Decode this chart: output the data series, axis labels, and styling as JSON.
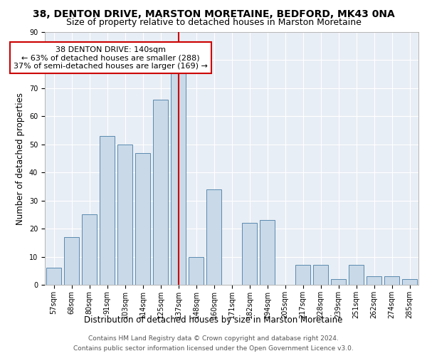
{
  "title1": "38, DENTON DRIVE, MARSTON MORETAINE, BEDFORD, MK43 0NA",
  "title2": "Size of property relative to detached houses in Marston Moretaine",
  "xlabel": "Distribution of detached houses by size in Marston Moretaine",
  "ylabel": "Number of detached properties",
  "footer1": "Contains HM Land Registry data © Crown copyright and database right 2024.",
  "footer2": "Contains public sector information licensed under the Open Government Licence v3.0.",
  "categories": [
    "57sqm",
    "68sqm",
    "80sqm",
    "91sqm",
    "103sqm",
    "114sqm",
    "125sqm",
    "137sqm",
    "148sqm",
    "160sqm",
    "171sqm",
    "182sqm",
    "194sqm",
    "205sqm",
    "217sqm",
    "228sqm",
    "239sqm",
    "251sqm",
    "262sqm",
    "274sqm",
    "285sqm"
  ],
  "values": [
    6,
    17,
    25,
    53,
    50,
    47,
    66,
    76,
    10,
    34,
    0,
    22,
    23,
    0,
    7,
    7,
    2,
    7,
    3,
    3,
    2
  ],
  "bar_color": "#c9d9e8",
  "bar_edge_color": "#5a8ab0",
  "highlight_index": 7,
  "highlight_line_color": "#cc0000",
  "annotation_text": "38 DENTON DRIVE: 140sqm\n← 63% of detached houses are smaller (288)\n37% of semi-detached houses are larger (169) →",
  "annotation_box_color": "#ffffff",
  "annotation_box_edge_color": "#cc0000",
  "ylim": [
    0,
    90
  ],
  "yticks": [
    0,
    10,
    20,
    30,
    40,
    50,
    60,
    70,
    80,
    90
  ],
  "plot_bg_color": "#e8eef5",
  "title1_fontsize": 10,
  "title2_fontsize": 9,
  "axis_label_fontsize": 8.5,
  "tick_fontsize": 7,
  "annotation_fontsize": 8,
  "footer_fontsize": 6.5
}
